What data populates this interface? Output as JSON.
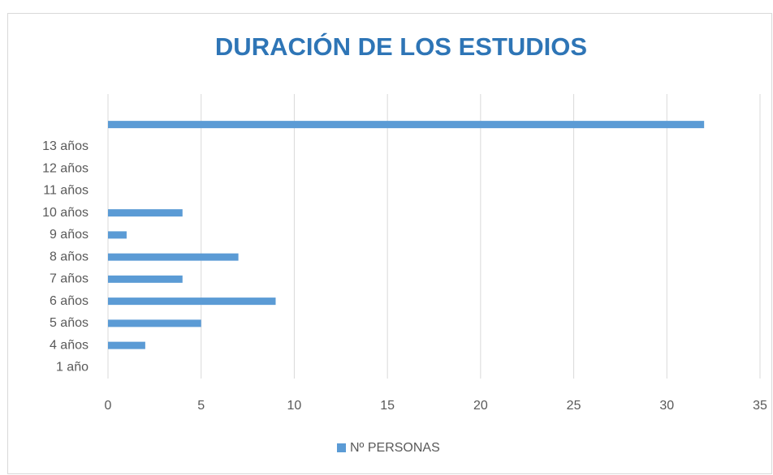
{
  "chart_data": {
    "type": "bar",
    "orientation": "horizontal",
    "title": "DURACIÓN DE LOS ESTUDIOS",
    "categories": [
      "1 año",
      "4 años",
      "5 años",
      "6 años",
      "7 años",
      "8 años",
      "9 años",
      "10 años",
      "11 años",
      "12 años",
      "13 años",
      null
    ],
    "series": [
      {
        "name": "Nº PERSONAS",
        "color": "#5b9bd5",
        "values": [
          0,
          2,
          5,
          9,
          4,
          7,
          1,
          4,
          0,
          0,
          0,
          32
        ]
      }
    ],
    "xlim": [
      0,
      35
    ],
    "xticks": [
      0,
      5,
      10,
      15,
      20,
      25,
      30,
      35
    ],
    "grid": true,
    "legend": "bottom"
  }
}
